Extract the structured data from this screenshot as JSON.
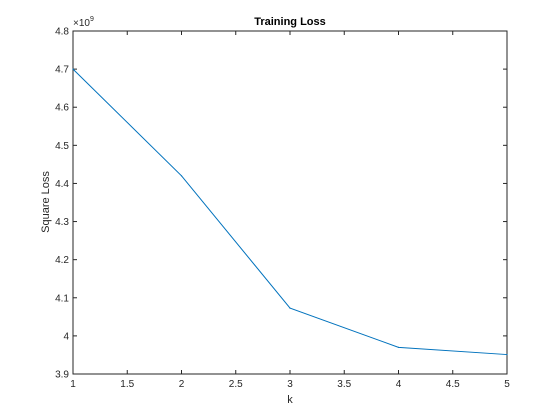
{
  "chart_data": {
    "type": "line",
    "title": "Training Loss",
    "xlabel": "k",
    "ylabel": "Square Loss",
    "y_exponent_label": "×10",
    "y_exponent": "9",
    "xlim": [
      1,
      5
    ],
    "ylim": [
      3.9,
      4.8
    ],
    "x_ticks": [
      1,
      1.5,
      2,
      2.5,
      3,
      3.5,
      4,
      4.5,
      5
    ],
    "x_tick_labels": [
      "1",
      "1.5",
      "2",
      "2.5",
      "3",
      "3.5",
      "4",
      "4.5",
      "5"
    ],
    "y_ticks": [
      3.9,
      4.0,
      4.1,
      4.2,
      4.3,
      4.4,
      4.5,
      4.6,
      4.7,
      4.8
    ],
    "y_tick_labels": [
      "3.9",
      "4",
      "4.1",
      "4.2",
      "4.3",
      "4.4",
      "4.5",
      "4.6",
      "4.7",
      "4.8"
    ],
    "grid": false,
    "legend": "none",
    "series": [
      {
        "x": [
          1,
          2,
          3,
          4,
          5
        ],
        "values": [
          4.7,
          4.42,
          4.073,
          3.97,
          3.951
        ],
        "color": "#0072bd"
      }
    ]
  }
}
